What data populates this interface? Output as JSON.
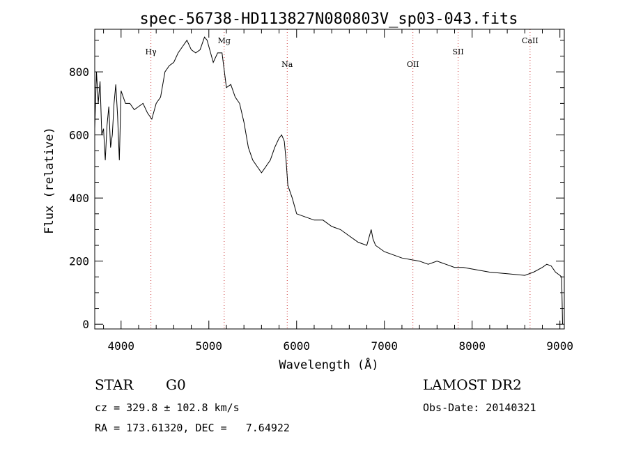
{
  "chart_data": {
    "type": "line",
    "title": "spec-56738-HD113827N080803V_sp03-043.fits",
    "xlabel": "Wavelength (Å)",
    "ylabel": "Flux (relative)",
    "xlim": [
      3700,
      9050
    ],
    "ylim": [
      -15,
      935
    ],
    "x_ticks": [
      4000,
      5000,
      6000,
      7000,
      8000,
      9000
    ],
    "y_ticks": [
      0,
      200,
      400,
      600,
      800
    ],
    "grid": false,
    "line_color": "#000000",
    "marker_color": "#cc3333",
    "lines": [
      {
        "name": "Hγ",
        "x": 4340
      },
      {
        "name": "Mg",
        "x": 5175
      },
      {
        "name": "Na",
        "x": 5893
      },
      {
        "name": "OII",
        "x": 7325
      },
      {
        "name": "SII",
        "x": 7840
      },
      {
        "name": "CaII",
        "x": 8660
      }
    ],
    "series": [
      {
        "x": [
          3700,
          3720,
          3740,
          3760,
          3780,
          3800,
          3820,
          3840,
          3860,
          3880,
          3900,
          3920,
          3940,
          3960,
          3980,
          4000,
          4050,
          4100,
          4150,
          4200,
          4250,
          4300,
          4350,
          4400,
          4450,
          4500,
          4550,
          4600,
          4650,
          4700,
          4750,
          4800,
          4850,
          4900,
          4950,
          4980,
          5000,
          5050,
          5100,
          5150,
          5200,
          5250,
          5300,
          5350,
          5400,
          5450,
          5500,
          5550,
          5600,
          5650,
          5700,
          5750,
          5800,
          5830,
          5860,
          5880,
          5900,
          5950,
          6000,
          6100,
          6200,
          6300,
          6400,
          6500,
          6600,
          6700,
          6800,
          6850,
          6870,
          6900,
          7000,
          7200,
          7400,
          7500,
          7600,
          7700,
          7800,
          7900,
          8000,
          8200,
          8400,
          8600,
          8700,
          8800,
          8850,
          8900,
          8950,
          9000,
          9020,
          9030
        ],
        "y": [
          620,
          800,
          700,
          770,
          600,
          620,
          520,
          630,
          690,
          560,
          600,
          700,
          760,
          660,
          520,
          740,
          700,
          700,
          680,
          690,
          700,
          670,
          650,
          700,
          720,
          800,
          820,
          830,
          860,
          880,
          900,
          870,
          860,
          870,
          910,
          900,
          880,
          830,
          860,
          860,
          750,
          760,
          720,
          700,
          640,
          560,
          520,
          500,
          480,
          500,
          520,
          560,
          590,
          600,
          580,
          520,
          440,
          400,
          350,
          340,
          330,
          330,
          310,
          300,
          280,
          260,
          250,
          300,
          270,
          250,
          230,
          210,
          200,
          190,
          200,
          190,
          180,
          180,
          175,
          165,
          160,
          155,
          165,
          180,
          190,
          185,
          165,
          155,
          150,
          0
        ]
      }
    ]
  },
  "footer": {
    "obj_class": "STAR",
    "subclass": "G0",
    "cz": "cz = 329.8 ± 102.8 km/s",
    "radec": "RA = 173.61320, DEC =   7.64922",
    "survey": "LAMOST DR2",
    "obs_date": "Obs-Date: 20140321"
  }
}
